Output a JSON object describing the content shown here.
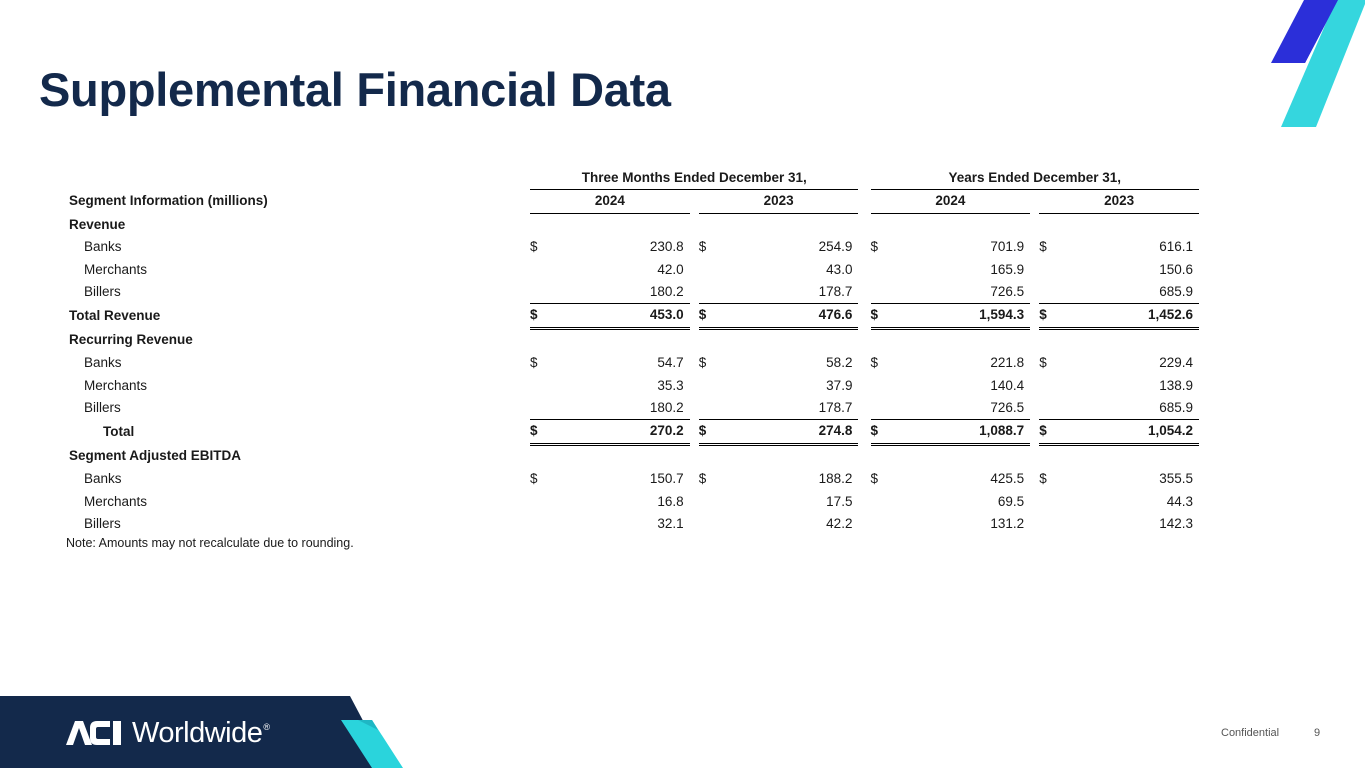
{
  "title": "Supplemental Financial Data",
  "group_headers": [
    "Three Months Ended December 31,",
    "Years Ended December 31,"
  ],
  "section_header": "Segment Information (millions)",
  "years": [
    "2024",
    "2023",
    "2024",
    "2023"
  ],
  "rows": [
    {
      "type": "section",
      "label": "Revenue"
    },
    {
      "type": "item",
      "indent": 1,
      "label": "Banks",
      "cur": true,
      "values": [
        "230.8",
        "254.9",
        "701.9",
        "616.1"
      ]
    },
    {
      "type": "item",
      "indent": 1,
      "label": "Merchants",
      "cur": false,
      "values": [
        "42.0",
        "43.0",
        "165.9",
        "150.6"
      ]
    },
    {
      "type": "item",
      "indent": 1,
      "label": "Billers",
      "cur": false,
      "values": [
        "180.2",
        "178.7",
        "726.5",
        "685.9"
      ]
    },
    {
      "type": "total",
      "indent": 0,
      "label": "Total Revenue",
      "cur": true,
      "values": [
        "453.0",
        "476.6",
        "1,594.3",
        "1,452.6"
      ]
    },
    {
      "type": "section",
      "label": "Recurring Revenue"
    },
    {
      "type": "item",
      "indent": 1,
      "label": "Banks",
      "cur": true,
      "values": [
        "54.7",
        "58.2",
        "221.8",
        "229.4"
      ]
    },
    {
      "type": "item",
      "indent": 1,
      "label": "Merchants",
      "cur": false,
      "values": [
        "35.3",
        "37.9",
        "140.4",
        "138.9"
      ]
    },
    {
      "type": "item",
      "indent": 1,
      "label": "Billers",
      "cur": false,
      "values": [
        "180.2",
        "178.7",
        "726.5",
        "685.9"
      ]
    },
    {
      "type": "total",
      "indent": 2,
      "label": "Total",
      "cur": true,
      "values": [
        "270.2",
        "274.8",
        "1,088.7",
        "1,054.2"
      ]
    },
    {
      "type": "section",
      "label": "Segment Adjusted EBITDA"
    },
    {
      "type": "item",
      "indent": 1,
      "label": "Banks",
      "cur": true,
      "values": [
        "150.7",
        "188.2",
        "425.5",
        "355.5"
      ]
    },
    {
      "type": "item",
      "indent": 1,
      "label": "Merchants",
      "cur": false,
      "values": [
        "16.8",
        "17.5",
        "69.5",
        "44.3"
      ]
    },
    {
      "type": "item",
      "indent": 1,
      "label": "Billers",
      "cur": false,
      "values": [
        "32.1",
        "42.2",
        "131.2",
        "142.3"
      ]
    }
  ],
  "currency_symbol": "$",
  "note": "Note: Amounts may not recalculate due to rounding.",
  "footer": {
    "logo_text": "Worldwide",
    "logo_mark": "ACI",
    "registered": "®",
    "confidential": "Confidential",
    "page_number": "9"
  },
  "colors": {
    "title": "#13294b",
    "footer_bg": "#13294b",
    "accent_blue": "#2b2fd9",
    "accent_cyan": "#2ad4dc"
  }
}
